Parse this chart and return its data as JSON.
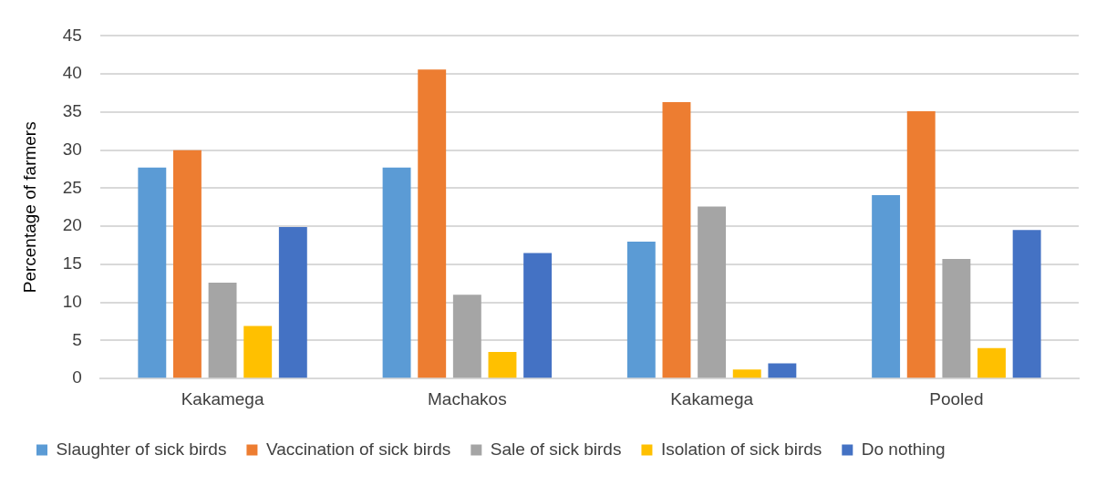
{
  "chart_data": {
    "type": "bar",
    "ylabel": "Percentage of farmers",
    "categories": [
      "Kakamega",
      "Machakos",
      "Kakamega",
      "Pooled"
    ],
    "series": [
      {
        "name": "Slaughter of sick birds",
        "color": "#5b9bd5",
        "values": [
          27.7,
          27.7,
          18.0,
          24.1
        ]
      },
      {
        "name": "Vaccination of sick birds",
        "color": "#ed7d31",
        "values": [
          30.0,
          40.6,
          36.3,
          35.1
        ]
      },
      {
        "name": "Sale of sick birds",
        "color": "#a5a5a5",
        "values": [
          12.6,
          11.0,
          22.6,
          15.7
        ]
      },
      {
        "name": "Isolation of sick birds",
        "color": "#ffc000",
        "values": [
          6.9,
          3.5,
          1.2,
          4.0
        ]
      },
      {
        "name": "Do nothing",
        "color": "#4472c4",
        "values": [
          19.9,
          16.5,
          2.0,
          19.5
        ]
      }
    ],
    "ylim": [
      0,
      45
    ],
    "yticks": [
      0,
      5,
      10,
      15,
      20,
      25,
      30,
      35,
      40,
      45
    ],
    "grid": "y",
    "legend": "bottom"
  }
}
